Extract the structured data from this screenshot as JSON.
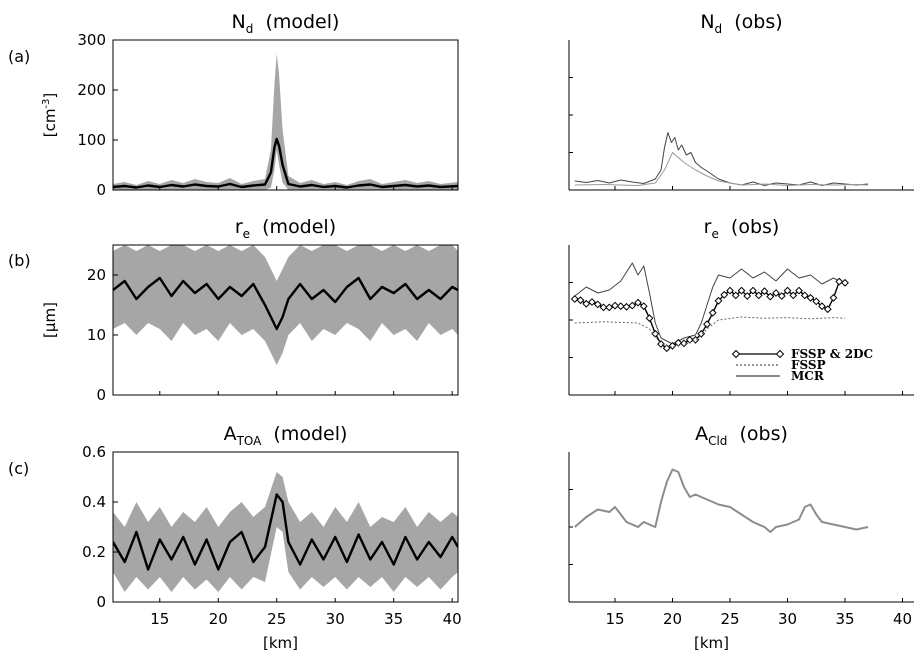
{
  "panel_labels": [
    "(a)",
    "(b)",
    "(c)"
  ],
  "chart_data": [
    {
      "id": "nd-model",
      "type": "area",
      "title": "N",
      "title_sub": "d",
      "title_suffix": "(model)",
      "ylabel": "[cm",
      "ylabel_sup": "-3",
      "ylabel_suffix": "]",
      "xlabel": "",
      "xlim": [
        11,
        40.5
      ],
      "ylim": [
        0,
        300
      ],
      "xticks": [],
      "yticks": [
        0,
        100,
        200,
        300
      ],
      "frame": "box",
      "grid": false,
      "series": [
        {
          "kind": "band",
          "color": "#a6a6a6",
          "x": [
            11,
            12,
            13,
            14,
            15,
            16,
            17,
            18,
            19,
            20,
            21,
            22,
            23,
            24,
            24.5,
            24.8,
            25,
            25.2,
            25.5,
            26,
            27,
            28,
            29,
            30,
            31,
            32,
            33,
            34,
            35,
            36,
            37,
            38,
            39,
            40.5
          ],
          "lower": [
            0,
            0,
            0,
            0,
            0,
            0,
            0,
            0,
            0,
            0,
            0,
            0,
            0,
            0,
            5,
            40,
            80,
            50,
            15,
            0,
            0,
            0,
            0,
            0,
            0,
            0,
            0,
            0,
            0,
            0,
            0,
            0,
            0,
            0
          ],
          "upper": [
            12,
            16,
            10,
            18,
            12,
            20,
            14,
            22,
            16,
            14,
            24,
            12,
            18,
            22,
            80,
            210,
            272,
            230,
            120,
            28,
            14,
            20,
            12,
            16,
            10,
            18,
            22,
            12,
            16,
            20,
            14,
            18,
            12,
            16
          ]
        },
        {
          "kind": "line",
          "color": "#000000",
          "width": 2.4,
          "x": [
            11,
            12,
            13,
            14,
            15,
            16,
            17,
            18,
            19,
            20,
            21,
            22,
            23,
            24,
            24.5,
            24.8,
            25,
            25.2,
            25.5,
            26,
            27,
            28,
            29,
            30,
            31,
            32,
            33,
            34,
            35,
            36,
            37,
            38,
            39,
            40.5
          ],
          "y": [
            6,
            8,
            5,
            9,
            6,
            10,
            7,
            11,
            8,
            7,
            12,
            6,
            9,
            11,
            35,
            85,
            102,
            88,
            50,
            12,
            7,
            10,
            6,
            8,
            5,
            9,
            11,
            6,
            8,
            10,
            7,
            9,
            6,
            8
          ]
        }
      ]
    },
    {
      "id": "nd-obs",
      "type": "line",
      "title": "N",
      "title_sub": "d",
      "title_suffix": "(obs)",
      "ylabel": "",
      "xlabel": "",
      "xlim": [
        11,
        41
      ],
      "ylim": [
        0,
        300
      ],
      "xticks": [],
      "yticks": [],
      "frame": "axes",
      "grid": false,
      "series": [
        {
          "kind": "line",
          "color": "#444444",
          "width": 1,
          "x": [
            11.5,
            12.5,
            13.5,
            14.5,
            15.5,
            16.5,
            17.5,
            18.5,
            19,
            19.3,
            19.6,
            19.9,
            20.2,
            20.5,
            20.8,
            21.2,
            21.6,
            22,
            22.5,
            23,
            23.5,
            24,
            25,
            26,
            27,
            28,
            29,
            30,
            31,
            32,
            33,
            34,
            35,
            36,
            37
          ],
          "y": [
            18,
            15,
            19,
            14,
            20,
            16,
            13,
            22,
            40,
            85,
            115,
            95,
            105,
            80,
            90,
            70,
            75,
            55,
            45,
            38,
            30,
            22,
            14,
            10,
            16,
            9,
            14,
            12,
            10,
            16,
            9,
            14,
            12,
            10,
            12
          ]
        },
        {
          "kind": "line",
          "color": "#9a9a9a",
          "width": 1,
          "x": [
            11.5,
            14,
            17,
            18.5,
            19.3,
            20,
            21,
            22,
            23,
            24,
            26,
            28,
            30,
            32,
            34,
            36,
            37
          ],
          "y": [
            10,
            11,
            9,
            14,
            40,
            75,
            55,
            40,
            28,
            18,
            10,
            12,
            9,
            11,
            10,
            11,
            10
          ]
        }
      ]
    },
    {
      "id": "re-model",
      "type": "area",
      "title": "r",
      "title_sub": "e",
      "title_suffix": "(model)",
      "ylabel": "[µm]",
      "ylabel_sup": "",
      "ylabel_suffix": "",
      "xlabel": "",
      "xlim": [
        11,
        40.5
      ],
      "ylim": [
        0,
        25
      ],
      "xticks": [],
      "yticks": [
        0,
        10,
        20
      ],
      "frame": "box",
      "grid": false,
      "series": [
        {
          "kind": "band",
          "color": "#a6a6a6",
          "x": [
            11,
            12,
            13,
            14,
            15,
            16,
            17,
            18,
            19,
            20,
            21,
            22,
            23,
            24,
            24.5,
            25,
            25.5,
            26,
            27,
            28,
            29,
            30,
            31,
            32,
            33,
            34,
            35,
            36,
            37,
            38,
            39,
            40,
            40.5
          ],
          "lower": [
            11,
            12,
            10,
            12,
            11,
            9,
            12,
            10,
            11,
            9,
            12,
            10,
            11,
            9,
            7,
            5,
            7,
            10,
            12,
            9,
            11,
            10,
            12,
            11,
            9,
            12,
            10,
            11,
            9,
            12,
            10,
            11,
            10
          ],
          "upper": [
            24,
            25,
            24,
            25,
            24,
            25,
            25,
            24,
            25,
            24,
            25,
            24,
            25,
            23,
            21,
            19,
            21,
            23,
            25,
            24,
            25,
            25,
            24,
            25,
            25,
            24,
            25,
            24,
            25,
            24,
            25,
            25,
            24
          ]
        },
        {
          "kind": "line",
          "color": "#000000",
          "width": 2.4,
          "x": [
            11,
            12,
            13,
            14,
            15,
            16,
            17,
            18,
            19,
            20,
            21,
            22,
            23,
            24,
            24.5,
            25,
            25.5,
            26,
            27,
            28,
            29,
            30,
            31,
            32,
            33,
            34,
            35,
            36,
            37,
            38,
            39,
            40,
            40.5
          ],
          "y": [
            17.5,
            19,
            16,
            18,
            19.5,
            16.5,
            19,
            17,
            18.5,
            16,
            18,
            16.5,
            18.5,
            15,
            13,
            11,
            13,
            16,
            18.5,
            16,
            17.5,
            15.5,
            18,
            19.5,
            16,
            18,
            17,
            18.5,
            16,
            17.5,
            16,
            18,
            17.5
          ]
        }
      ]
    },
    {
      "id": "re-obs",
      "type": "line",
      "title": "r",
      "title_sub": "e",
      "title_suffix": "(obs)",
      "ylabel": "",
      "xlabel": "",
      "xlim": [
        11,
        41
      ],
      "ylim": [
        0,
        25
      ],
      "xticks": [],
      "yticks": [],
      "frame": "axes",
      "grid": false,
      "legend": [
        {
          "label": "FSSP & 2DC",
          "style": "diamond",
          "color": "#000000"
        },
        {
          "label": "FSSP",
          "style": "dotted",
          "color": "#555555"
        },
        {
          "label": "MCR",
          "style": "solid",
          "color": "#444444"
        }
      ],
      "series": [
        {
          "kind": "line",
          "name": "MCR",
          "color": "#444444",
          "width": 1,
          "x": [
            11.5,
            12.5,
            13.5,
            14.5,
            15.5,
            16.5,
            17,
            17.5,
            18,
            18.5,
            19,
            20,
            21,
            22,
            22.5,
            23,
            23.5,
            24,
            25,
            26,
            27,
            28,
            29,
            30,
            31,
            32,
            33,
            34,
            35
          ],
          "y": [
            16.5,
            18,
            17,
            17.5,
            19,
            22,
            20,
            21.5,
            17,
            12,
            9.5,
            8.5,
            9.5,
            10,
            12,
            15,
            18,
            20,
            19.5,
            21,
            19.5,
            20.5,
            19,
            21,
            19.5,
            20,
            18.5,
            19.5,
            18.5
          ]
        },
        {
          "kind": "line",
          "name": "FSSP & 2DC",
          "color": "#000000",
          "width": 1.4,
          "marker": "diamond",
          "x": [
            11.5,
            12,
            12.5,
            13,
            13.5,
            14,
            14.5,
            15,
            15.5,
            16,
            16.5,
            17,
            17.5,
            18,
            18.5,
            19,
            19.5,
            20,
            20.5,
            21,
            21.5,
            22,
            22.5,
            23,
            23.5,
            24,
            24.5,
            25,
            25.5,
            26,
            26.5,
            27,
            27.5,
            28,
            28.5,
            29,
            29.5,
            30,
            30.5,
            31,
            31.5,
            32,
            32.5,
            33,
            33.5,
            34,
            34.5,
            35
          ],
          "y": [
            16,
            15.8,
            15.2,
            15.5,
            15.1,
            14.6,
            14.6,
            14.9,
            14.8,
            14.7,
            14.9,
            15.4,
            14.8,
            12.8,
            10.2,
            8.5,
            7.8,
            8.2,
            8.7,
            8.6,
            9.2,
            9.2,
            10.2,
            11.8,
            13.7,
            15.7,
            16.7,
            17.4,
            16.6,
            17.4,
            16.5,
            17.4,
            16.6,
            17.3,
            16.4,
            17,
            16.5,
            17.4,
            16.6,
            17.4,
            16.6,
            16.2,
            15.6,
            14.8,
            14.3,
            16.2,
            18.9,
            18.7
          ]
        },
        {
          "kind": "line",
          "name": "FSSP",
          "color": "#666666",
          "width": 1,
          "dash": "2,2",
          "x": [
            11.5,
            14,
            17,
            18,
            19,
            20,
            21,
            22,
            23,
            24,
            26,
            28,
            30,
            32,
            34,
            35
          ],
          "y": [
            12,
            12.2,
            12,
            11,
            8.5,
            8,
            8.5,
            9,
            11,
            12.5,
            13,
            12.8,
            12.9,
            12.7,
            12.9,
            12.8
          ]
        }
      ]
    },
    {
      "id": "atoa-model",
      "type": "area",
      "title": "A",
      "title_sub": "TOA",
      "title_suffix": "(model)",
      "ylabel": "",
      "xlabel": "[km]",
      "xlim": [
        11,
        40.5
      ],
      "ylim": [
        0,
        0.6
      ],
      "xticks": [
        15,
        20,
        25,
        30,
        35,
        40
      ],
      "yticks": [
        0,
        0.2,
        0.4,
        0.6
      ],
      "frame": "box",
      "grid": false,
      "series": [
        {
          "kind": "band",
          "color": "#a6a6a6",
          "x": [
            11,
            12,
            13,
            14,
            15,
            16,
            17,
            18,
            19,
            20,
            21,
            22,
            23,
            24,
            25,
            25.5,
            26,
            27,
            28,
            29,
            30,
            31,
            32,
            33,
            34,
            35,
            36,
            37,
            38,
            39,
            40,
            40.5
          ],
          "lower": [
            0.12,
            0.04,
            0.1,
            0.05,
            0.1,
            0.04,
            0.1,
            0.05,
            0.09,
            0.04,
            0.1,
            0.05,
            0.1,
            0.08,
            0.3,
            0.28,
            0.12,
            0.05,
            0.1,
            0.06,
            0.1,
            0.05,
            0.1,
            0.06,
            0.1,
            0.04,
            0.1,
            0.06,
            0.1,
            0.05,
            0.1,
            0.12
          ],
          "upper": [
            0.36,
            0.3,
            0.4,
            0.32,
            0.38,
            0.3,
            0.36,
            0.32,
            0.38,
            0.3,
            0.36,
            0.4,
            0.34,
            0.38,
            0.52,
            0.5,
            0.4,
            0.32,
            0.36,
            0.3,
            0.38,
            0.32,
            0.4,
            0.3,
            0.34,
            0.32,
            0.38,
            0.3,
            0.36,
            0.32,
            0.36,
            0.34
          ]
        },
        {
          "kind": "line",
          "color": "#000000",
          "width": 2.4,
          "x": [
            11,
            12,
            13,
            14,
            15,
            16,
            17,
            18,
            19,
            20,
            21,
            22,
            23,
            24,
            25,
            25.5,
            26,
            27,
            28,
            29,
            30,
            31,
            32,
            33,
            34,
            35,
            36,
            37,
            38,
            39,
            40,
            40.5
          ],
          "y": [
            0.24,
            0.16,
            0.28,
            0.13,
            0.25,
            0.17,
            0.26,
            0.15,
            0.25,
            0.13,
            0.24,
            0.28,
            0.16,
            0.22,
            0.43,
            0.4,
            0.24,
            0.15,
            0.25,
            0.17,
            0.26,
            0.16,
            0.27,
            0.17,
            0.24,
            0.15,
            0.26,
            0.17,
            0.24,
            0.18,
            0.26,
            0.22
          ]
        }
      ]
    },
    {
      "id": "acld-obs",
      "type": "line",
      "title": "A",
      "title_sub": "Cld",
      "title_suffix": "(obs)",
      "ylabel": "",
      "xlabel": "[km]",
      "xlim": [
        11,
        41
      ],
      "ylim": [
        0,
        0.6
      ],
      "xticks": [
        15,
        20,
        25,
        30,
        35,
        40
      ],
      "yticks": [],
      "frame": "axes",
      "grid": false,
      "series": [
        {
          "kind": "line",
          "color": "#8c8c8c",
          "width": 2,
          "x": [
            11.5,
            12.5,
            13.5,
            14.5,
            15,
            15.5,
            16,
            16.5,
            17,
            17.5,
            18,
            18.5,
            19,
            19.5,
            20,
            20.5,
            21,
            21.5,
            22,
            23,
            24,
            25,
            26,
            27,
            28,
            28.5,
            29,
            30,
            31,
            31.5,
            32,
            32.5,
            33,
            34,
            35,
            36,
            37
          ],
          "y": [
            0.3,
            0.34,
            0.37,
            0.36,
            0.38,
            0.35,
            0.32,
            0.31,
            0.3,
            0.32,
            0.31,
            0.3,
            0.4,
            0.48,
            0.53,
            0.52,
            0.46,
            0.42,
            0.43,
            0.41,
            0.39,
            0.38,
            0.35,
            0.32,
            0.3,
            0.28,
            0.3,
            0.31,
            0.33,
            0.38,
            0.39,
            0.35,
            0.32,
            0.31,
            0.3,
            0.29,
            0.3
          ]
        }
      ]
    }
  ]
}
